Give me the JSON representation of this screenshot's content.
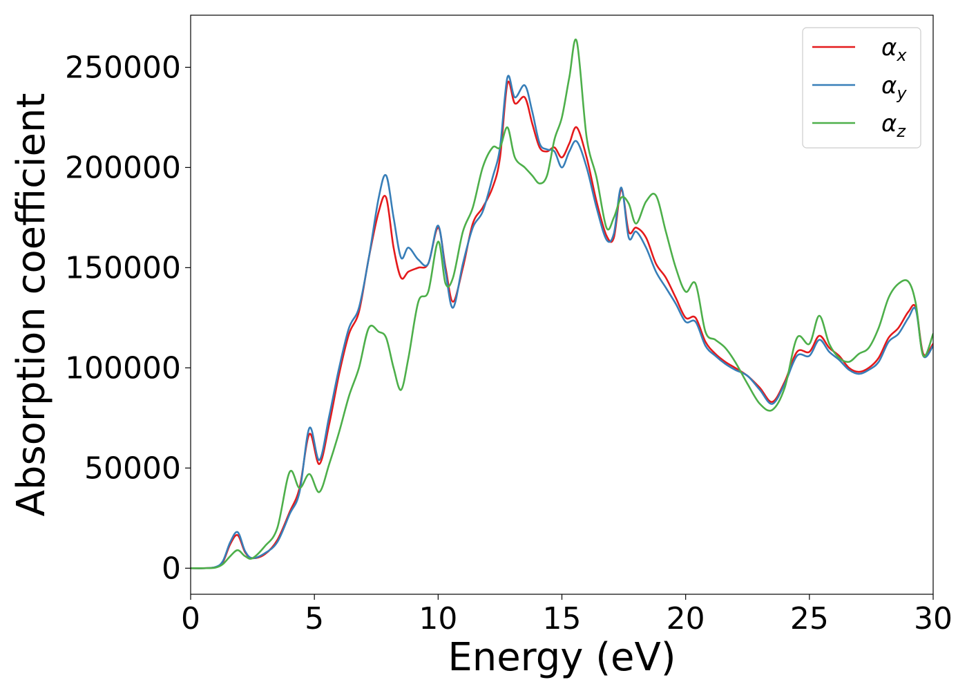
{
  "chart_data": {
    "type": "line",
    "xlabel": "Energy (eV)",
    "ylabel": "Absorption coefficient",
    "xlim": [
      0,
      30
    ],
    "ylim": [
      -13000,
      276000
    ],
    "xticks": [
      0,
      5,
      10,
      15,
      20,
      25,
      30
    ],
    "xtick_labels": [
      "0",
      "5",
      "10",
      "15",
      "20",
      "25",
      "30"
    ],
    "yticks": [
      0,
      50000,
      100000,
      150000,
      200000,
      250000
    ],
    "ytick_labels": [
      "0",
      "50000",
      "100000",
      "150000",
      "200000",
      "250000"
    ],
    "grid": false,
    "legend_position": "top-right",
    "series": [
      {
        "name": "αx",
        "label_base": "α",
        "label_sub": "x",
        "color": "#e41a1c",
        "x": [
          0,
          0.5,
          1.0,
          1.3,
          1.6,
          1.9,
          2.2,
          2.5,
          3.0,
          3.5,
          4.0,
          4.4,
          4.8,
          5.2,
          5.6,
          6.0,
          6.4,
          6.8,
          7.2,
          7.6,
          7.9,
          8.2,
          8.5,
          8.8,
          9.2,
          9.6,
          10.0,
          10.3,
          10.6,
          11.0,
          11.4,
          11.8,
          12.2,
          12.5,
          12.8,
          13.1,
          13.5,
          13.8,
          14.1,
          14.4,
          14.7,
          15.0,
          15.3,
          15.6,
          16.0,
          16.4,
          16.8,
          17.1,
          17.4,
          17.7,
          18.0,
          18.4,
          18.8,
          19.2,
          19.6,
          20.0,
          20.4,
          20.8,
          21.2,
          21.6,
          22.0,
          22.5,
          23.0,
          23.5,
          24.0,
          24.5,
          25.0,
          25.4,
          25.8,
          26.2,
          26.6,
          27.0,
          27.4,
          27.8,
          28.2,
          28.6,
          29.0,
          29.3,
          29.6,
          30.0
        ],
        "y": [
          0,
          0,
          500,
          3000,
          12000,
          16500,
          8000,
          5000,
          7000,
          14000,
          28000,
          40000,
          67000,
          52000,
          72000,
          97000,
          117000,
          128000,
          155000,
          178000,
          185000,
          160000,
          145000,
          148000,
          150000,
          152000,
          170000,
          150000,
          133000,
          150000,
          172000,
          180000,
          190000,
          205000,
          242000,
          232000,
          235000,
          222000,
          210000,
          208000,
          210000,
          205000,
          212000,
          220000,
          205000,
          183000,
          166000,
          165000,
          189000,
          168000,
          170000,
          165000,
          152000,
          145000,
          135000,
          125000,
          125000,
          113000,
          107000,
          103000,
          100000,
          96000,
          90000,
          83000,
          93000,
          108000,
          108000,
          116000,
          110000,
          106000,
          100000,
          98000,
          100000,
          105000,
          115000,
          120000,
          128000,
          130000,
          107000,
          112000
        ]
      },
      {
        "name": "αy",
        "label_base": "α",
        "label_sub": "y",
        "color": "#377eb8",
        "x": [
          0,
          0.5,
          1.0,
          1.3,
          1.6,
          1.9,
          2.2,
          2.5,
          3.0,
          3.5,
          4.0,
          4.4,
          4.8,
          5.2,
          5.6,
          6.0,
          6.4,
          6.8,
          7.2,
          7.6,
          7.9,
          8.2,
          8.5,
          8.8,
          9.2,
          9.6,
          10.0,
          10.3,
          10.6,
          11.0,
          11.4,
          11.8,
          12.2,
          12.5,
          12.8,
          13.1,
          13.5,
          13.8,
          14.1,
          14.4,
          14.7,
          15.0,
          15.3,
          15.6,
          16.0,
          16.4,
          16.8,
          17.1,
          17.4,
          17.7,
          18.0,
          18.4,
          18.8,
          19.2,
          19.6,
          20.0,
          20.4,
          20.8,
          21.2,
          21.6,
          22.0,
          22.5,
          23.0,
          23.5,
          24.0,
          24.5,
          25.0,
          25.4,
          25.8,
          26.2,
          26.6,
          27.0,
          27.4,
          27.8,
          28.2,
          28.6,
          29.0,
          29.3,
          29.6,
          30.0
        ],
        "y": [
          0,
          0,
          600,
          3500,
          13000,
          18000,
          8500,
          5000,
          7500,
          13000,
          27000,
          38000,
          70000,
          54000,
          76000,
          100000,
          120000,
          130000,
          155000,
          185000,
          196000,
          175000,
          155000,
          160000,
          154000,
          152000,
          171000,
          148000,
          130000,
          152000,
          170000,
          178000,
          195000,
          210000,
          245000,
          235000,
          241000,
          228000,
          212000,
          209000,
          208000,
          200000,
          208000,
          213000,
          200000,
          180000,
          164000,
          167000,
          190000,
          165000,
          168000,
          160000,
          148000,
          140000,
          132000,
          123000,
          123000,
          111000,
          106000,
          102000,
          99000,
          96000,
          89000,
          82000,
          92000,
          106000,
          106000,
          114000,
          108000,
          104000,
          99000,
          97000,
          99000,
          103000,
          113000,
          117000,
          125000,
          129000,
          106000,
          111000
        ]
      },
      {
        "name": "αz",
        "label_base": "α",
        "label_sub": "z",
        "color": "#4daf4a",
        "x": [
          0,
          0.5,
          1.0,
          1.3,
          1.6,
          1.9,
          2.2,
          2.5,
          3.0,
          3.5,
          4.0,
          4.4,
          4.8,
          5.2,
          5.6,
          6.0,
          6.4,
          6.8,
          7.2,
          7.6,
          7.9,
          8.2,
          8.5,
          8.8,
          9.2,
          9.6,
          10.0,
          10.3,
          10.6,
          11.0,
          11.4,
          11.8,
          12.2,
          12.5,
          12.8,
          13.1,
          13.5,
          13.8,
          14.1,
          14.4,
          14.7,
          15.0,
          15.3,
          15.6,
          16.0,
          16.4,
          16.8,
          17.1,
          17.4,
          17.7,
          18.0,
          18.4,
          18.8,
          19.2,
          19.6,
          20.0,
          20.4,
          20.8,
          21.2,
          21.6,
          22.0,
          22.5,
          23.0,
          23.5,
          24.0,
          24.5,
          25.0,
          25.4,
          25.8,
          26.2,
          26.6,
          27.0,
          27.4,
          27.8,
          28.2,
          28.6,
          29.0,
          29.3,
          29.6,
          30.0
        ],
        "y": [
          0,
          0,
          300,
          2000,
          6000,
          9000,
          6000,
          5000,
          11000,
          20000,
          48000,
          40000,
          47000,
          38000,
          52000,
          68000,
          86000,
          100000,
          120000,
          118000,
          115000,
          100000,
          89000,
          105000,
          133000,
          138000,
          163000,
          142000,
          145000,
          168000,
          180000,
          200000,
          210000,
          210000,
          220000,
          205000,
          200000,
          196000,
          192000,
          196000,
          214000,
          225000,
          245000,
          263000,
          215000,
          195000,
          170000,
          175000,
          185000,
          182000,
          172000,
          183000,
          186000,
          168000,
          150000,
          138000,
          142000,
          118000,
          114000,
          110000,
          103000,
          92000,
          82000,
          79000,
          90000,
          115000,
          112000,
          126000,
          112000,
          105000,
          103000,
          107000,
          110000,
          120000,
          135000,
          142000,
          143000,
          132000,
          106000,
          117000
        ]
      }
    ]
  }
}
